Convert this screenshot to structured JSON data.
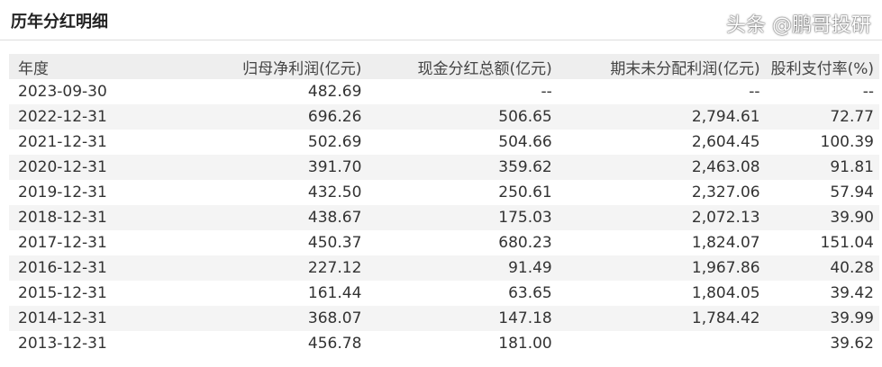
{
  "title": "历年分红明细",
  "table": {
    "headers": [
      "年度",
      "归母净利润(亿元)",
      "现金分红总额(亿元)",
      "期末未分配利润(亿元)",
      "股利支付率(%)"
    ],
    "rows": [
      [
        "2023-09-30",
        "482.69",
        "--",
        "--",
        "--"
      ],
      [
        "2022-12-31",
        "696.26",
        "506.65",
        "2,794.61",
        "72.77"
      ],
      [
        "2021-12-31",
        "502.69",
        "504.66",
        "2,604.45",
        "100.39"
      ],
      [
        "2020-12-31",
        "391.70",
        "359.62",
        "2,463.08",
        "91.81"
      ],
      [
        "2019-12-31",
        "432.50",
        "250.61",
        "2,327.06",
        "57.94"
      ],
      [
        "2018-12-31",
        "438.67",
        "175.03",
        "2,072.13",
        "39.90"
      ],
      [
        "2017-12-31",
        "450.37",
        "680.23",
        "1,824.07",
        "151.04"
      ],
      [
        "2016-12-31",
        "227.12",
        "91.49",
        "1,967.86",
        "40.28"
      ],
      [
        "2015-12-31",
        "161.44",
        "63.65",
        "1,804.05",
        "39.42"
      ],
      [
        "2014-12-31",
        "368.07",
        "147.18",
        "1,784.42",
        "39.99"
      ],
      [
        "2013-12-31",
        "456.78",
        "181.00",
        "",
        "39.62"
      ]
    ]
  },
  "watermark": "头条 @鹏哥投研"
}
